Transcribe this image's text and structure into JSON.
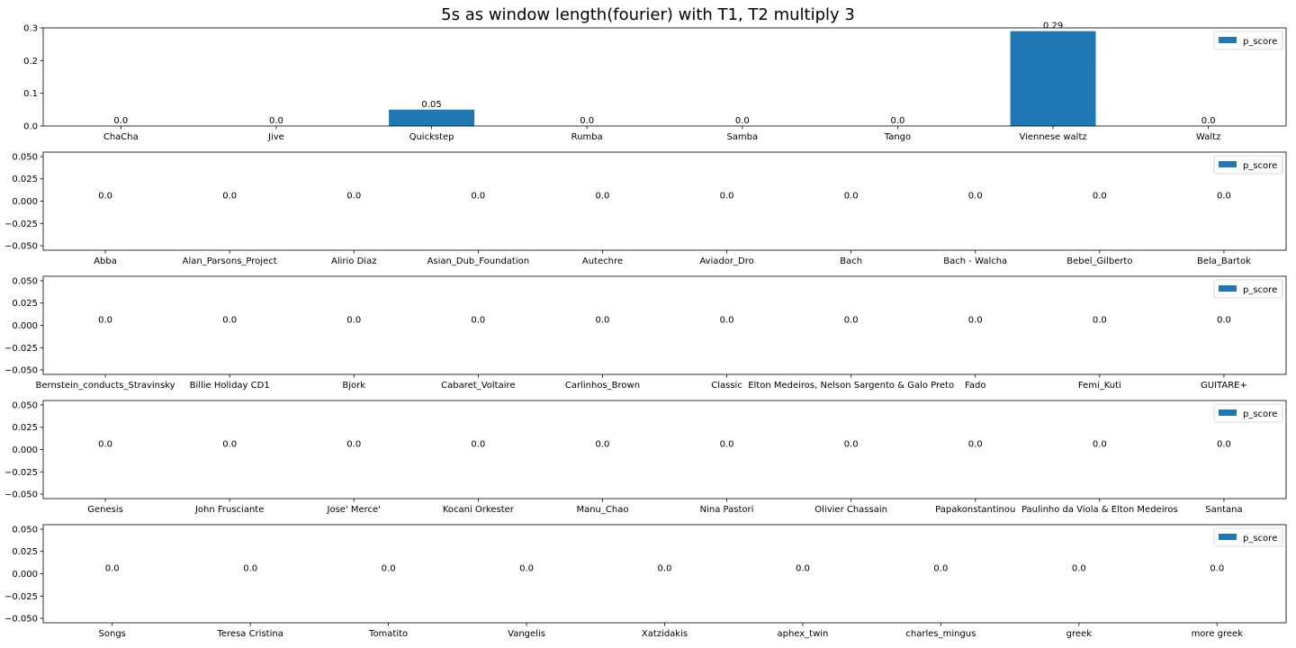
{
  "figure": {
    "title": "5s as window length(fourier) with T1, T2 multiply 3"
  },
  "chart_data": [
    {
      "type": "bar",
      "categories": [
        "ChaCha",
        "Jive",
        "Quickstep",
        "Rumba",
        "Samba",
        "Tango",
        "Viennese waltz",
        "Waltz"
      ],
      "series": [
        {
          "name": "p_score",
          "values": [
            0.0,
            0.0,
            0.05,
            0.0,
            0.0,
            0.0,
            0.29,
            0.0
          ],
          "color": "#1f77b4"
        }
      ],
      "data_labels": [
        "0.0",
        "0.0",
        "0.05",
        "0.0",
        "0.0",
        "0.0",
        "0.29",
        "0.0"
      ],
      "ylim": [
        0,
        0.3
      ],
      "yticks": [
        0.0,
        0.1,
        0.2,
        0.3
      ],
      "ytick_labels": [
        "0.0",
        "0.1",
        "0.2",
        "0.3"
      ],
      "legend": "top-right",
      "grid": false
    },
    {
      "type": "bar",
      "categories": [
        "Abba",
        "Alan_Parsons_Project",
        "Alirio Diaz",
        "Asian_Dub_Foundation",
        "Autechre",
        "Aviador_Dro",
        "Bach",
        "Bach - Walcha",
        "Bebel_Gilberto",
        "Bela_Bartok"
      ],
      "series": [
        {
          "name": "p_score",
          "values": [
            0,
            0,
            0,
            0,
            0,
            0,
            0,
            0,
            0,
            0
          ],
          "color": "#1f77b4"
        }
      ],
      "data_labels": [
        "0.0",
        "0.0",
        "0.0",
        "0.0",
        "0.0",
        "0.0",
        "0.0",
        "0.0",
        "0.0",
        "0.0"
      ],
      "ylim": [
        -0.055,
        0.055
      ],
      "yticks": [
        0.05,
        0.025,
        0.0,
        -0.025,
        -0.05
      ],
      "ytick_labels": [
        "0.050",
        "0.025",
        "0.000",
        "−0.025",
        "−0.050"
      ],
      "legend": "top-right",
      "grid": false
    },
    {
      "type": "bar",
      "categories": [
        "Bernstein_conducts_Stravinsky",
        "Billie Holiday CD1",
        "Bjork",
        "Cabaret_Voltaire",
        "Carlinhos_Brown",
        "Classic",
        "Elton Medeiros, Nelson Sargento & Galo Preto",
        "Fado",
        "Femi_Kuti",
        "GUITARE+"
      ],
      "series": [
        {
          "name": "p_score",
          "values": [
            0,
            0,
            0,
            0,
            0,
            0,
            0,
            0,
            0,
            0
          ],
          "color": "#1f77b4"
        }
      ],
      "data_labels": [
        "0.0",
        "0.0",
        "0.0",
        "0.0",
        "0.0",
        "0.0",
        "0.0",
        "0.0",
        "0.0",
        "0.0"
      ],
      "ylim": [
        -0.055,
        0.055
      ],
      "yticks": [
        0.05,
        0.025,
        0.0,
        -0.025,
        -0.05
      ],
      "ytick_labels": [
        "0.050",
        "0.025",
        "0.000",
        "−0.025",
        "−0.050"
      ],
      "legend": "top-right",
      "grid": false
    },
    {
      "type": "bar",
      "categories": [
        "Genesis",
        "John Frusciante",
        "Jose' Merce'",
        "Kocani Orkester",
        "Manu_Chao",
        "Nina Pastori",
        "Olivier Chassain",
        "Papakonstantinou",
        "Paulinho da Viola & Elton Medeiros",
        "Santana"
      ],
      "series": [
        {
          "name": "p_score",
          "values": [
            0,
            0,
            0,
            0,
            0,
            0,
            0,
            0,
            0,
            0
          ],
          "color": "#1f77b4"
        }
      ],
      "data_labels": [
        "0.0",
        "0.0",
        "0.0",
        "0.0",
        "0.0",
        "0.0",
        "0.0",
        "0.0",
        "0.0",
        "0.0"
      ],
      "ylim": [
        -0.055,
        0.055
      ],
      "yticks": [
        0.05,
        0.025,
        0.0,
        -0.025,
        -0.05
      ],
      "ytick_labels": [
        "0.050",
        "0.025",
        "0.000",
        "−0.025",
        "−0.050"
      ],
      "legend": "top-right",
      "grid": false
    },
    {
      "type": "bar",
      "categories": [
        "Songs",
        "Teresa Cristina",
        "Tomatito",
        "Vangelis",
        "Xatzidakis",
        "aphex_twin",
        "charles_mingus",
        "greek",
        "more greek"
      ],
      "series": [
        {
          "name": "p_score",
          "values": [
            0,
            0,
            0,
            0,
            0,
            0,
            0,
            0,
            0
          ],
          "color": "#1f77b4"
        }
      ],
      "data_labels": [
        "0.0",
        "0.0",
        "0.0",
        "0.0",
        "0.0",
        "0.0",
        "0.0",
        "0.0",
        "0.0"
      ],
      "ylim": [
        -0.055,
        0.055
      ],
      "yticks": [
        0.05,
        0.025,
        0.0,
        -0.025,
        -0.05
      ],
      "ytick_labels": [
        "0.050",
        "0.025",
        "0.000",
        "−0.025",
        "−0.050"
      ],
      "legend": "top-right",
      "grid": false
    }
  ]
}
